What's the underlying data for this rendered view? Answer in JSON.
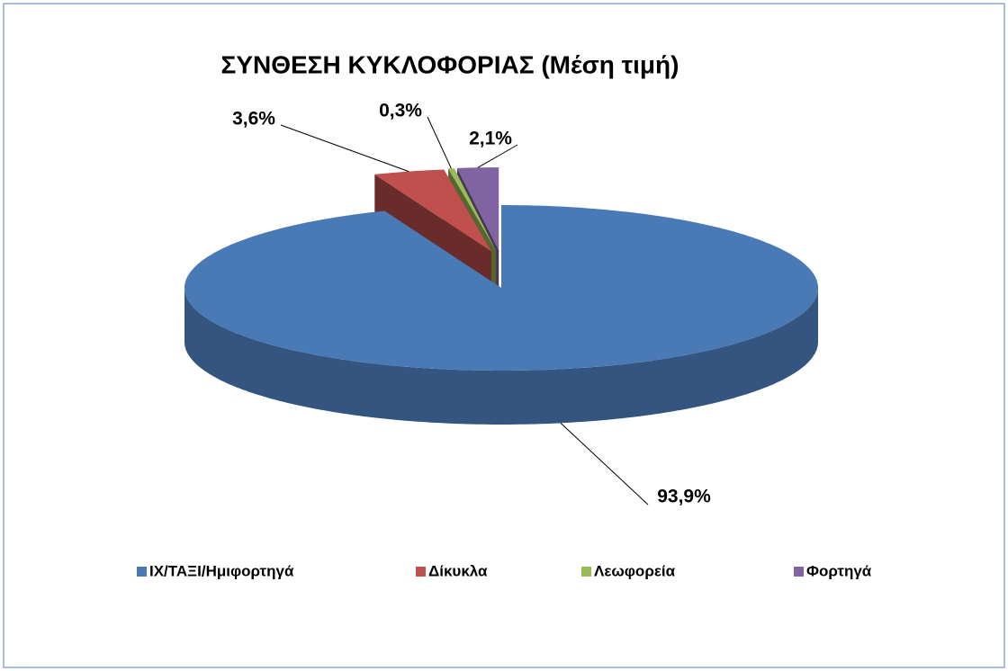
{
  "chart_data": {
    "type": "pie",
    "title": "ΣΥΝΘΕΣΗ ΚΥΚΛΟΦΟΡΙΑΣ (Μέση τιμή)",
    "categories": [
      "ΙΧ/ΤΑΞΙ/Ημιφορτηγά",
      "Δίκυκλα",
      "Λεωφορεία",
      "Φορτηγά"
    ],
    "values": [
      93.9,
      3.6,
      0.3,
      2.1
    ],
    "value_labels": [
      "93,9%",
      "3,6%",
      "0,3%",
      "2,1%"
    ],
    "colors": [
      "#4a7ab5",
      "#c0504d",
      "#9bbb59",
      "#8064a2"
    ],
    "legend": "bottom"
  }
}
